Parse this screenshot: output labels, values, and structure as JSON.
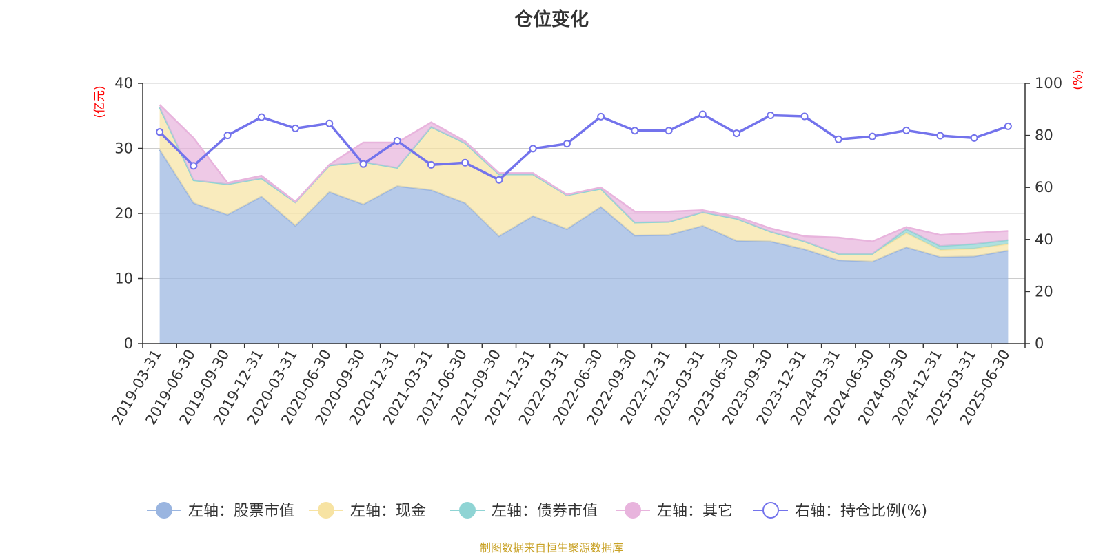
{
  "chart_data": {
    "type": "area",
    "title": "仓位变化",
    "left_axis_unit": "(亿元)",
    "right_axis_unit": "(%)",
    "left_ylim": [
      0,
      40
    ],
    "right_ylim": [
      0,
      100
    ],
    "left_ticks": [
      "0",
      "10",
      "20",
      "30",
      "40"
    ],
    "right_ticks": [
      "0",
      "20",
      "40",
      "60",
      "80",
      "100"
    ],
    "grid": true,
    "legend_position": "bottom",
    "x": [
      "2019-03-31",
      "2019-06-30",
      "2019-09-30",
      "2019-12-31",
      "2020-03-31",
      "2020-06-30",
      "2020-09-30",
      "2020-12-31",
      "2021-03-31",
      "2021-06-30",
      "2021-09-30",
      "2021-12-31",
      "2022-03-31",
      "2022-06-30",
      "2022-09-30",
      "2022-12-31",
      "2023-03-31",
      "2023-06-30",
      "2023-09-30",
      "2023-12-31",
      "2024-03-31",
      "2024-06-30",
      "2024-09-30",
      "2024-12-31",
      "2025-03-31",
      "2025-06-30"
    ],
    "stacked_series": [
      {
        "name": "左轴：股票市值",
        "axis": "left",
        "color": "#9ab5e0",
        "values": [
          29.8,
          21.6,
          19.8,
          22.6,
          18.1,
          23.3,
          21.4,
          24.2,
          23.6,
          21.6,
          16.5,
          19.6,
          17.6,
          21.0,
          16.6,
          16.7,
          18.1,
          15.8,
          15.7,
          14.5,
          12.8,
          12.6,
          14.8,
          13.3,
          13.4,
          14.3
        ]
      },
      {
        "name": "左轴：现金",
        "axis": "left",
        "color": "#f7e3a3",
        "values": [
          6.5,
          3.5,
          4.7,
          2.8,
          3.6,
          4.1,
          6.5,
          2.8,
          9.7,
          9.2,
          9.5,
          6.4,
          5.2,
          2.8,
          2.0,
          2.0,
          2.1,
          3.4,
          1.5,
          1.2,
          1.0,
          1.2,
          2.2,
          1.1,
          1.2,
          1.0
        ]
      },
      {
        "name": "左轴：债券市值",
        "axis": "left",
        "color": "#8fd4d4",
        "values": [
          0,
          0,
          0,
          0,
          0,
          0,
          0,
          0,
          0,
          0,
          0,
          0,
          0,
          0,
          0,
          0,
          0,
          0,
          0,
          0,
          0,
          0,
          0.6,
          0.6,
          0.7,
          0.6
        ]
      },
      {
        "name": "左轴：其它",
        "axis": "left",
        "color": "#e8b4dd",
        "values": [
          0.4,
          6.5,
          0.2,
          0.4,
          0.1,
          0.1,
          3.0,
          3.9,
          0.7,
          0.3,
          0.2,
          0.2,
          0.1,
          0.2,
          1.7,
          1.6,
          0.3,
          0.3,
          0.5,
          0.8,
          2.5,
          1.9,
          0.3,
          1.7,
          1.7,
          1.4
        ]
      }
    ],
    "line_series": {
      "name": "右轴：持仓比例(%)",
      "axis": "right",
      "color": "#7373ec",
      "values": [
        81.3,
        68.3,
        80.0,
        87.0,
        82.7,
        84.6,
        69.0,
        77.9,
        68.7,
        69.5,
        62.9,
        74.9,
        76.8,
        87.2,
        81.8,
        81.8,
        88.1,
        80.8,
        87.7,
        87.3,
        78.5,
        79.6,
        81.9,
        79.9,
        79.0,
        83.5
      ]
    }
  },
  "source_note": "制图数据来自恒生聚源数据库"
}
